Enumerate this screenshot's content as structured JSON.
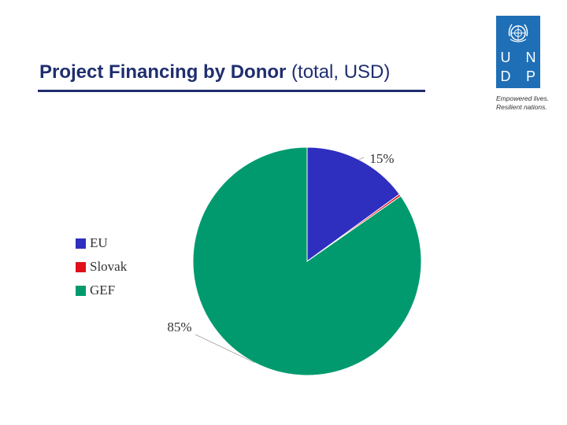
{
  "title": {
    "bold": "Project Financing by Donor",
    "rest": " (total, USD)"
  },
  "logo": {
    "letters": [
      "U",
      "N",
      "D",
      "P"
    ],
    "tagline": [
      "Empowered lives.",
      "Resilient nations."
    ],
    "icon": "un-emblem-icon",
    "color": "#1f6fb6"
  },
  "chart_data": {
    "type": "pie",
    "title": "Project Financing by Donor (total, USD)",
    "slices": [
      {
        "name": "EU",
        "value": 15,
        "label": "15%",
        "color": "#2f2fbf"
      },
      {
        "name": "Slovak",
        "value": 0.3,
        "label": "",
        "color": "#e0101a"
      },
      {
        "name": "GEF",
        "value": 84.7,
        "label": "85%",
        "color": "#009a6e"
      }
    ],
    "legend": {
      "placement": "left",
      "items": [
        "EU",
        "Slovak",
        "GEF"
      ]
    }
  }
}
